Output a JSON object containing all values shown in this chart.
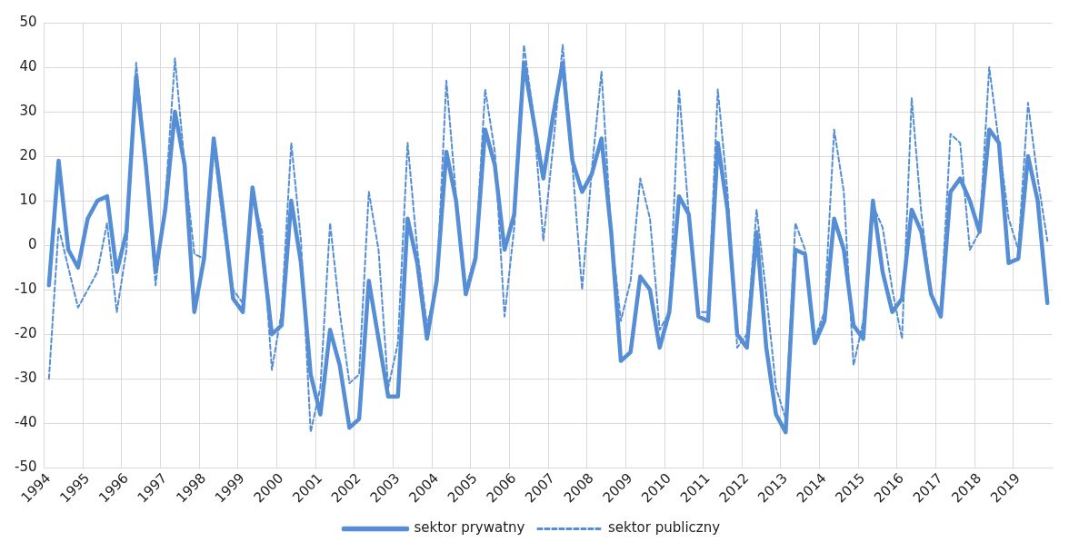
{
  "chart_data": {
    "type": "line",
    "categories": [
      "1994",
      null,
      null,
      null,
      "1995",
      null,
      null,
      null,
      "1996",
      null,
      null,
      null,
      "1997",
      null,
      null,
      null,
      "1998",
      null,
      null,
      null,
      "1999",
      null,
      null,
      null,
      "2000",
      null,
      null,
      null,
      "2001",
      null,
      null,
      null,
      "2002",
      null,
      null,
      null,
      "2003",
      null,
      null,
      null,
      "2004",
      null,
      null,
      null,
      "2005",
      null,
      null,
      null,
      "2006",
      null,
      null,
      null,
      "2007",
      null,
      null,
      null,
      "2008",
      null,
      null,
      null,
      "2009",
      null,
      null,
      null,
      "2010",
      null,
      null,
      null,
      "2011",
      null,
      null,
      null,
      "2012",
      null,
      null,
      null,
      "2013",
      null,
      null,
      null,
      "2014",
      null,
      null,
      null,
      "2015",
      null,
      null,
      null,
      "2016",
      null,
      null,
      null,
      "2017",
      null,
      null,
      null,
      "2018",
      null,
      null,
      null,
      "2019",
      null,
      null,
      null
    ],
    "series": [
      {
        "name": "sektor prywatny",
        "color": "#558ed5",
        "line_style": "solid",
        "values": [
          -9,
          19,
          -1,
          -5,
          6,
          10,
          11,
          -6,
          3,
          38,
          18,
          -6,
          8,
          30,
          18,
          -15,
          -3,
          24,
          7,
          -12,
          -15,
          13,
          -1,
          -20,
          -18,
          10,
          -4,
          -29,
          -38,
          -19,
          -27,
          -41,
          -39,
          -8,
          -21,
          -34,
          -34,
          6,
          -4,
          -21,
          -8,
          21,
          10,
          -11,
          -3,
          26,
          18,
          -1,
          7,
          41,
          28,
          15,
          29,
          41,
          19,
          12,
          16,
          24,
          3,
          -26,
          -24,
          -7,
          -10,
          -23,
          -15,
          11,
          7,
          -16,
          -17,
          23,
          8,
          -20,
          -23,
          3,
          -23,
          -38,
          -42,
          -1,
          -2,
          -22,
          -17,
          6,
          -1,
          -18,
          -21,
          10,
          -6,
          -15,
          -12,
          8,
          3,
          -11,
          -16,
          12,
          15,
          10,
          3,
          26,
          23,
          -4,
          -3,
          20,
          10,
          -13
        ]
      },
      {
        "name": "sektor publiczny",
        "color": "#558ed5",
        "line_style": "dashed",
        "values": [
          -30,
          4,
          -5,
          -14,
          -10,
          -6,
          5,
          -15,
          -1,
          41,
          19,
          -9,
          10,
          42,
          18,
          -2,
          -3,
          22,
          4,
          -10,
          -13,
          11,
          3,
          -28,
          -15,
          23,
          1,
          -42,
          -32,
          5,
          -15,
          -31,
          -29,
          12,
          -1,
          -32,
          -22,
          23,
          -1,
          -18,
          -9,
          37,
          11,
          -10,
          -2,
          35,
          21,
          -16,
          4,
          45,
          29,
          1,
          22,
          45,
          18,
          -10,
          17,
          39,
          3,
          -17,
          -8,
          15,
          6,
          -19,
          -15,
          35,
          7,
          -15,
          -15,
          35,
          12,
          -23,
          -20,
          8,
          -11,
          -32,
          -39,
          5,
          -1,
          -21,
          -15,
          26,
          12,
          -27,
          -17,
          9,
          4,
          -10,
          -21,
          33,
          7,
          -11,
          -15,
          25,
          23,
          -1,
          3,
          40,
          23,
          6,
          -1,
          32,
          15,
          1
        ]
      }
    ],
    "ylim": [
      -50,
      50
    ],
    "yticks": [
      -50,
      -40,
      -30,
      -20,
      -10,
      0,
      10,
      20,
      30,
      40,
      50
    ],
    "grid": true,
    "legend": "bottom",
    "marker": "none"
  }
}
